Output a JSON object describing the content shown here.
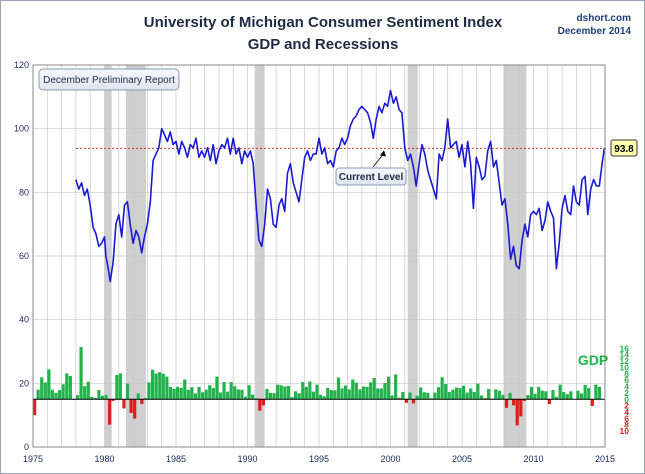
{
  "chart_data": {
    "type": "line",
    "title": "University of Michigan Consumer Sentiment Index",
    "subtitle": "GDP and Recessions",
    "source": "dshort.com",
    "date": "December 2014",
    "report_label": "December Preliminary Report",
    "current_label": "Current Level",
    "current_value_label": "93.8",
    "current_value": 93.8,
    "gdp_label": "GDP",
    "colors": {
      "sentiment": "#1a1ad6",
      "gdp_pos": "#22b24c",
      "gdp_neg": "#e01b1b",
      "recession": "#cfcfcf",
      "current_line": "#c0392b",
      "badge_fill": "#ffffb0",
      "grid": "#c8c8c8"
    },
    "x_axis": {
      "range": [
        1975,
        2015
      ],
      "ticks": [
        "1975",
        "1980",
        "1985",
        "1990",
        "1995",
        "2000",
        "2005",
        "2010",
        "2015"
      ]
    },
    "y_axis_left": {
      "range": [
        0,
        120
      ],
      "ticks": [
        "0",
        "20",
        "40",
        "60",
        "80",
        "100",
        "120"
      ]
    },
    "y_axis_gdp": {
      "range": [
        -10,
        16
      ],
      "zero_on_left_scale": 15,
      "ticks": [
        {
          "label": "16",
          "v": 16
        },
        {
          "label": "14",
          "v": 14
        },
        {
          "label": "12",
          "v": 12
        },
        {
          "label": "10",
          "v": 10
        },
        {
          "label": "8",
          "v": 8
        },
        {
          "label": "6",
          "v": 6
        },
        {
          "label": "4",
          "v": 4
        },
        {
          "label": "2",
          "v": 2
        },
        {
          "label": "0",
          "v": 0
        },
        {
          "label": "2",
          "v": -2
        },
        {
          "label": "4",
          "v": -4
        },
        {
          "label": "6",
          "v": -6
        },
        {
          "label": "8",
          "v": -8
        },
        {
          "label": "10",
          "v": -10
        }
      ]
    },
    "recessions": [
      [
        1980.0,
        1980.5
      ],
      [
        1981.5,
        1982.9
      ],
      [
        1990.5,
        1991.2
      ],
      [
        2001.2,
        2001.9
      ],
      [
        2007.9,
        2009.5
      ]
    ],
    "sentiment_series": [
      [
        1978.0,
        84
      ],
      [
        1978.2,
        81
      ],
      [
        1978.4,
        83
      ],
      [
        1978.6,
        79
      ],
      [
        1978.8,
        81
      ],
      [
        1979.0,
        76
      ],
      [
        1979.2,
        69
      ],
      [
        1979.4,
        67
      ],
      [
        1979.6,
        63
      ],
      [
        1979.8,
        64
      ],
      [
        1980.0,
        66
      ],
      [
        1980.1,
        60
      ],
      [
        1980.3,
        55
      ],
      [
        1980.4,
        52
      ],
      [
        1980.6,
        58
      ],
      [
        1980.8,
        70
      ],
      [
        1981.0,
        73
      ],
      [
        1981.2,
        66
      ],
      [
        1981.4,
        76
      ],
      [
        1981.6,
        77
      ],
      [
        1981.8,
        70
      ],
      [
        1982.0,
        64
      ],
      [
        1982.2,
        68
      ],
      [
        1982.4,
        66
      ],
      [
        1982.6,
        61
      ],
      [
        1982.8,
        66
      ],
      [
        1983.0,
        70
      ],
      [
        1983.2,
        77
      ],
      [
        1983.4,
        90
      ],
      [
        1983.6,
        92
      ],
      [
        1983.8,
        94
      ],
      [
        1984.0,
        100
      ],
      [
        1984.2,
        98
      ],
      [
        1984.4,
        96
      ],
      [
        1984.6,
        99
      ],
      [
        1984.8,
        95
      ],
      [
        1985.0,
        96
      ],
      [
        1985.2,
        92
      ],
      [
        1985.4,
        96
      ],
      [
        1985.6,
        94
      ],
      [
        1985.8,
        91
      ],
      [
        1986.0,
        95
      ],
      [
        1986.2,
        94
      ],
      [
        1986.4,
        97
      ],
      [
        1986.6,
        91
      ],
      [
        1986.8,
        93
      ],
      [
        1987.0,
        91
      ],
      [
        1987.2,
        94
      ],
      [
        1987.4,
        90
      ],
      [
        1987.6,
        95
      ],
      [
        1987.8,
        89
      ],
      [
        1988.0,
        93
      ],
      [
        1988.2,
        95
      ],
      [
        1988.4,
        94
      ],
      [
        1988.6,
        97
      ],
      [
        1988.8,
        92
      ],
      [
        1989.0,
        97
      ],
      [
        1989.2,
        92
      ],
      [
        1989.4,
        94
      ],
      [
        1989.6,
        89
      ],
      [
        1989.8,
        93
      ],
      [
        1990.0,
        91
      ],
      [
        1990.2,
        93
      ],
      [
        1990.4,
        89
      ],
      [
        1990.6,
        76
      ],
      [
        1990.8,
        65
      ],
      [
        1991.0,
        63
      ],
      [
        1991.2,
        70
      ],
      [
        1991.4,
        81
      ],
      [
        1991.6,
        78
      ],
      [
        1991.8,
        70
      ],
      [
        1992.0,
        69
      ],
      [
        1992.2,
        76
      ],
      [
        1992.4,
        78
      ],
      [
        1992.6,
        74
      ],
      [
        1992.8,
        86
      ],
      [
        1993.0,
        89
      ],
      [
        1993.2,
        83
      ],
      [
        1993.4,
        80
      ],
      [
        1993.6,
        77
      ],
      [
        1993.8,
        84
      ],
      [
        1994.0,
        91
      ],
      [
        1994.2,
        93
      ],
      [
        1994.4,
        90
      ],
      [
        1994.6,
        92
      ],
      [
        1994.8,
        92
      ],
      [
        1995.0,
        97
      ],
      [
        1995.2,
        92
      ],
      [
        1995.4,
        94
      ],
      [
        1995.6,
        89
      ],
      [
        1995.8,
        90
      ],
      [
        1996.0,
        88
      ],
      [
        1996.2,
        93
      ],
      [
        1996.4,
        94
      ],
      [
        1996.6,
        97
      ],
      [
        1996.8,
        95
      ],
      [
        1997.0,
        97
      ],
      [
        1997.2,
        101
      ],
      [
        1997.4,
        103
      ],
      [
        1997.6,
        104
      ],
      [
        1997.8,
        106
      ],
      [
        1998.0,
        107
      ],
      [
        1998.2,
        106
      ],
      [
        1998.4,
        105
      ],
      [
        1998.6,
        102
      ],
      [
        1998.8,
        97
      ],
      [
        1999.0,
        103
      ],
      [
        1999.2,
        107
      ],
      [
        1999.4,
        105
      ],
      [
        1999.6,
        108
      ],
      [
        1999.8,
        107
      ],
      [
        2000.0,
        112
      ],
      [
        2000.2,
        108
      ],
      [
        2000.4,
        110
      ],
      [
        2000.6,
        106
      ],
      [
        2000.8,
        105
      ],
      [
        2001.0,
        94
      ],
      [
        2001.2,
        90
      ],
      [
        2001.4,
        92
      ],
      [
        2001.6,
        88
      ],
      [
        2001.8,
        82
      ],
      [
        2002.0,
        89
      ],
      [
        2002.2,
        95
      ],
      [
        2002.4,
        92
      ],
      [
        2002.6,
        87
      ],
      [
        2002.8,
        84
      ],
      [
        2003.0,
        81
      ],
      [
        2003.2,
        78
      ],
      [
        2003.4,
        92
      ],
      [
        2003.6,
        90
      ],
      [
        2003.8,
        94
      ],
      [
        2004.0,
        103
      ],
      [
        2004.2,
        94
      ],
      [
        2004.4,
        95
      ],
      [
        2004.6,
        96
      ],
      [
        2004.8,
        91
      ],
      [
        2005.0,
        95
      ],
      [
        2005.2,
        88
      ],
      [
        2005.4,
        96
      ],
      [
        2005.6,
        89
      ],
      [
        2005.8,
        75
      ],
      [
        2006.0,
        91
      ],
      [
        2006.2,
        88
      ],
      [
        2006.4,
        84
      ],
      [
        2006.6,
        85
      ],
      [
        2006.8,
        93
      ],
      [
        2007.0,
        96
      ],
      [
        2007.2,
        88
      ],
      [
        2007.4,
        90
      ],
      [
        2007.6,
        83
      ],
      [
        2007.8,
        76
      ],
      [
        2008.0,
        78
      ],
      [
        2008.2,
        70
      ],
      [
        2008.4,
        59
      ],
      [
        2008.6,
        63
      ],
      [
        2008.8,
        57
      ],
      [
        2009.0,
        56
      ],
      [
        2009.2,
        65
      ],
      [
        2009.4,
        70
      ],
      [
        2009.6,
        66
      ],
      [
        2009.8,
        73
      ],
      [
        2010.0,
        74
      ],
      [
        2010.2,
        73
      ],
      [
        2010.4,
        75
      ],
      [
        2010.6,
        68
      ],
      [
        2010.8,
        71
      ],
      [
        2011.0,
        77
      ],
      [
        2011.2,
        74
      ],
      [
        2011.4,
        72
      ],
      [
        2011.6,
        56
      ],
      [
        2011.8,
        64
      ],
      [
        2012.0,
        75
      ],
      [
        2012.2,
        79
      ],
      [
        2012.4,
        74
      ],
      [
        2012.6,
        73
      ],
      [
        2012.8,
        82
      ],
      [
        2013.0,
        77
      ],
      [
        2013.2,
        76
      ],
      [
        2013.4,
        84
      ],
      [
        2013.6,
        85
      ],
      [
        2013.8,
        73
      ],
      [
        2014.0,
        81
      ],
      [
        2014.2,
        84
      ],
      [
        2014.4,
        82
      ],
      [
        2014.6,
        82
      ],
      [
        2014.8,
        89
      ],
      [
        2014.95,
        93.8
      ]
    ],
    "gdp_quarterly": [
      [
        1975.0,
        -5.0
      ],
      [
        1975.25,
        3.0
      ],
      [
        1975.5,
        6.9
      ],
      [
        1975.75,
        5.3
      ],
      [
        1976.0,
        9.4
      ],
      [
        1976.25,
        3.0
      ],
      [
        1976.5,
        2.0
      ],
      [
        1976.75,
        2.9
      ],
      [
        1977.0,
        4.7
      ],
      [
        1977.25,
        8.1
      ],
      [
        1977.5,
        7.3
      ],
      [
        1977.75,
        0.0
      ],
      [
        1978.0,
        1.3
      ],
      [
        1978.25,
        16.4
      ],
      [
        1978.5,
        4.1
      ],
      [
        1978.75,
        5.5
      ],
      [
        1979.0,
        0.7
      ],
      [
        1979.25,
        0.4
      ],
      [
        1979.5,
        2.9
      ],
      [
        1979.75,
        1.1
      ],
      [
        1980.0,
        1.3
      ],
      [
        1980.25,
        -8.0
      ],
      [
        1980.5,
        -0.5
      ],
      [
        1980.75,
        7.6
      ],
      [
        1981.0,
        8.1
      ],
      [
        1981.25,
        -2.9
      ],
      [
        1981.5,
        4.9
      ],
      [
        1981.75,
        -4.3
      ],
      [
        1982.0,
        -6.1
      ],
      [
        1982.25,
        1.8
      ],
      [
        1982.5,
        -1.5
      ],
      [
        1982.75,
        0.4
      ],
      [
        1983.0,
        5.3
      ],
      [
        1983.25,
        9.3
      ],
      [
        1983.5,
        8.1
      ],
      [
        1983.75,
        8.5
      ],
      [
        1984.0,
        8.0
      ],
      [
        1984.25,
        7.1
      ],
      [
        1984.5,
        3.9
      ],
      [
        1984.75,
        3.3
      ],
      [
        1985.0,
        3.9
      ],
      [
        1985.25,
        3.6
      ],
      [
        1985.5,
        6.2
      ],
      [
        1985.75,
        3.0
      ],
      [
        1986.0,
        3.8
      ],
      [
        1986.25,
        1.8
      ],
      [
        1986.5,
        3.9
      ],
      [
        1986.75,
        2.2
      ],
      [
        1987.0,
        3.0
      ],
      [
        1987.25,
        4.4
      ],
      [
        1987.5,
        3.5
      ],
      [
        1987.75,
        7.1
      ],
      [
        1988.0,
        2.1
      ],
      [
        1988.25,
        5.4
      ],
      [
        1988.5,
        2.4
      ],
      [
        1988.75,
        5.4
      ],
      [
        1989.0,
        4.1
      ],
      [
        1989.25,
        3.1
      ],
      [
        1989.5,
        3.0
      ],
      [
        1989.75,
        0.8
      ],
      [
        1990.0,
        4.4
      ],
      [
        1990.25,
        1.5
      ],
      [
        1990.5,
        0.3
      ],
      [
        1990.75,
        -3.6
      ],
      [
        1991.0,
        -1.9
      ],
      [
        1991.25,
        3.2
      ],
      [
        1991.5,
        2.0
      ],
      [
        1991.75,
        1.9
      ],
      [
        1992.0,
        4.6
      ],
      [
        1992.25,
        4.4
      ],
      [
        1992.5,
        4.0
      ],
      [
        1992.75,
        4.2
      ],
      [
        1993.0,
        0.7
      ],
      [
        1993.25,
        2.5
      ],
      [
        1993.5,
        1.9
      ],
      [
        1993.75,
        5.4
      ],
      [
        1994.0,
        3.9
      ],
      [
        1994.25,
        5.6
      ],
      [
        1994.5,
        2.4
      ],
      [
        1994.75,
        4.6
      ],
      [
        1995.0,
        1.4
      ],
      [
        1995.25,
        0.9
      ],
      [
        1995.5,
        3.6
      ],
      [
        1995.75,
        2.9
      ],
      [
        1996.0,
        2.8
      ],
      [
        1996.25,
        6.8
      ],
      [
        1996.5,
        3.4
      ],
      [
        1996.75,
        4.3
      ],
      [
        1997.0,
        3.1
      ],
      [
        1997.25,
        6.2
      ],
      [
        1997.5,
        5.2
      ],
      [
        1997.75,
        3.1
      ],
      [
        1998.0,
        4.0
      ],
      [
        1998.25,
        3.9
      ],
      [
        1998.5,
        5.3
      ],
      [
        1998.75,
        6.7
      ],
      [
        1999.0,
        3.4
      ],
      [
        1999.25,
        3.4
      ],
      [
        1999.5,
        5.1
      ],
      [
        1999.75,
        7.1
      ],
      [
        2000.0,
        1.2
      ],
      [
        2000.25,
        7.8
      ],
      [
        2000.5,
        0.5
      ],
      [
        2000.75,
        2.3
      ],
      [
        2001.0,
        -1.1
      ],
      [
        2001.25,
        2.1
      ],
      [
        2001.5,
        -1.3
      ],
      [
        2001.75,
        1.1
      ],
      [
        2002.0,
        3.7
      ],
      [
        2002.25,
        2.2
      ],
      [
        2002.5,
        2.0
      ],
      [
        2002.75,
        0.3
      ],
      [
        2003.0,
        2.1
      ],
      [
        2003.25,
        3.8
      ],
      [
        2003.5,
        6.9
      ],
      [
        2003.75,
        4.8
      ],
      [
        2004.0,
        2.3
      ],
      [
        2004.25,
        3.0
      ],
      [
        2004.5,
        3.7
      ],
      [
        2004.75,
        3.5
      ],
      [
        2005.0,
        4.3
      ],
      [
        2005.25,
        2.1
      ],
      [
        2005.5,
        3.4
      ],
      [
        2005.75,
        2.3
      ],
      [
        2006.0,
        4.9
      ],
      [
        2006.25,
        1.2
      ],
      [
        2006.5,
        0.4
      ],
      [
        2006.75,
        3.2
      ],
      [
        2007.0,
        0.2
      ],
      [
        2007.25,
        3.1
      ],
      [
        2007.5,
        2.7
      ],
      [
        2007.75,
        1.4
      ],
      [
        2008.0,
        -2.7
      ],
      [
        2008.25,
        2.0
      ],
      [
        2008.5,
        -1.9
      ],
      [
        2008.75,
        -8.2
      ],
      [
        2009.0,
        -5.4
      ],
      [
        2009.25,
        -0.5
      ],
      [
        2009.5,
        1.3
      ],
      [
        2009.75,
        3.9
      ],
      [
        2010.0,
        1.7
      ],
      [
        2010.25,
        3.9
      ],
      [
        2010.5,
        2.7
      ],
      [
        2010.75,
        2.5
      ],
      [
        2011.0,
        -1.5
      ],
      [
        2011.25,
        2.9
      ],
      [
        2011.5,
        0.8
      ],
      [
        2011.75,
        4.6
      ],
      [
        2012.0,
        2.3
      ],
      [
        2012.25,
        1.6
      ],
      [
        2012.5,
        2.5
      ],
      [
        2012.75,
        0.1
      ],
      [
        2013.0,
        2.7
      ],
      [
        2013.25,
        1.8
      ],
      [
        2013.5,
        4.5
      ],
      [
        2013.75,
        3.5
      ],
      [
        2014.0,
        -2.1
      ],
      [
        2014.25,
        4.6
      ],
      [
        2014.5,
        3.9
      ]
    ]
  }
}
